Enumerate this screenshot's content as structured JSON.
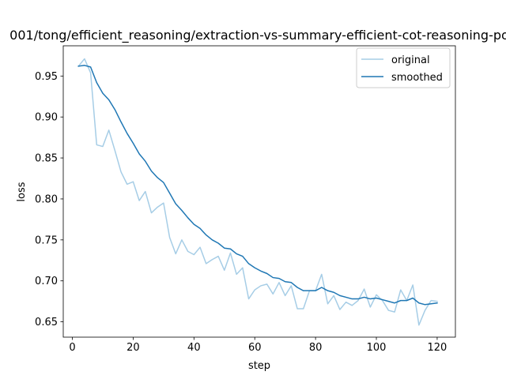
{
  "chart_data": {
    "type": "line",
    "title": "001/tong/efficient_reasoning/extraction-vs-summary-efficient-cot-reasoning-po",
    "xlabel": "step",
    "ylabel": "loss",
    "xlim": [
      -3,
      126
    ],
    "ylim": [
      0.6313,
      0.9869
    ],
    "xticks": [
      0,
      20,
      40,
      60,
      80,
      100,
      120
    ],
    "xtick_labels": [
      "0",
      "20",
      "40",
      "60",
      "80",
      "100",
      "120"
    ],
    "yticks": [
      0.65,
      0.7,
      0.75,
      0.8,
      0.85,
      0.9,
      0.95
    ],
    "ytick_labels": [
      "0.65",
      "0.70",
      "0.75",
      "0.80",
      "0.85",
      "0.90",
      "0.95"
    ],
    "grid": false,
    "legend": {
      "position": "top-right",
      "entries": [
        "original",
        "smoothed"
      ]
    },
    "x": [
      2,
      4,
      6,
      8,
      10,
      12,
      14,
      16,
      18,
      20,
      22,
      24,
      26,
      28,
      30,
      32,
      34,
      36,
      38,
      40,
      42,
      44,
      46,
      48,
      50,
      52,
      54,
      56,
      58,
      60,
      62,
      64,
      66,
      68,
      70,
      72,
      74,
      76,
      78,
      80,
      82,
      84,
      86,
      88,
      90,
      92,
      94,
      96,
      98,
      100,
      102,
      104,
      106,
      108,
      110,
      112,
      114,
      116,
      118,
      120
    ],
    "series": [
      {
        "name": "original",
        "color": "#a6cde6",
        "values": [
          0.962,
          0.971,
          0.954,
          0.866,
          0.864,
          0.884,
          0.859,
          0.833,
          0.818,
          0.821,
          0.798,
          0.809,
          0.783,
          0.79,
          0.795,
          0.753,
          0.733,
          0.75,
          0.736,
          0.732,
          0.741,
          0.721,
          0.726,
          0.73,
          0.713,
          0.734,
          0.708,
          0.716,
          0.678,
          0.689,
          0.694,
          0.696,
          0.684,
          0.698,
          0.682,
          0.694,
          0.666,
          0.666,
          0.688,
          0.688,
          0.708,
          0.672,
          0.682,
          0.665,
          0.674,
          0.67,
          0.676,
          0.69,
          0.668,
          0.683,
          0.676,
          0.664,
          0.662,
          0.689,
          0.676,
          0.695,
          0.646,
          0.664,
          0.676,
          0.675
        ]
      },
      {
        "name": "smoothed",
        "color": "#1f77b4",
        "values": [
          0.962,
          0.963,
          0.961,
          0.942,
          0.929,
          0.921,
          0.909,
          0.894,
          0.88,
          0.868,
          0.855,
          0.846,
          0.834,
          0.826,
          0.82,
          0.807,
          0.794,
          0.786,
          0.777,
          0.769,
          0.764,
          0.756,
          0.75,
          0.746,
          0.74,
          0.739,
          0.733,
          0.73,
          0.721,
          0.716,
          0.712,
          0.709,
          0.704,
          0.703,
          0.699,
          0.698,
          0.692,
          0.688,
          0.688,
          0.688,
          0.692,
          0.688,
          0.686,
          0.682,
          0.68,
          0.678,
          0.678,
          0.68,
          0.678,
          0.679,
          0.677,
          0.675,
          0.673,
          0.676,
          0.676,
          0.679,
          0.673,
          0.671,
          0.672,
          0.673
        ]
      }
    ]
  }
}
